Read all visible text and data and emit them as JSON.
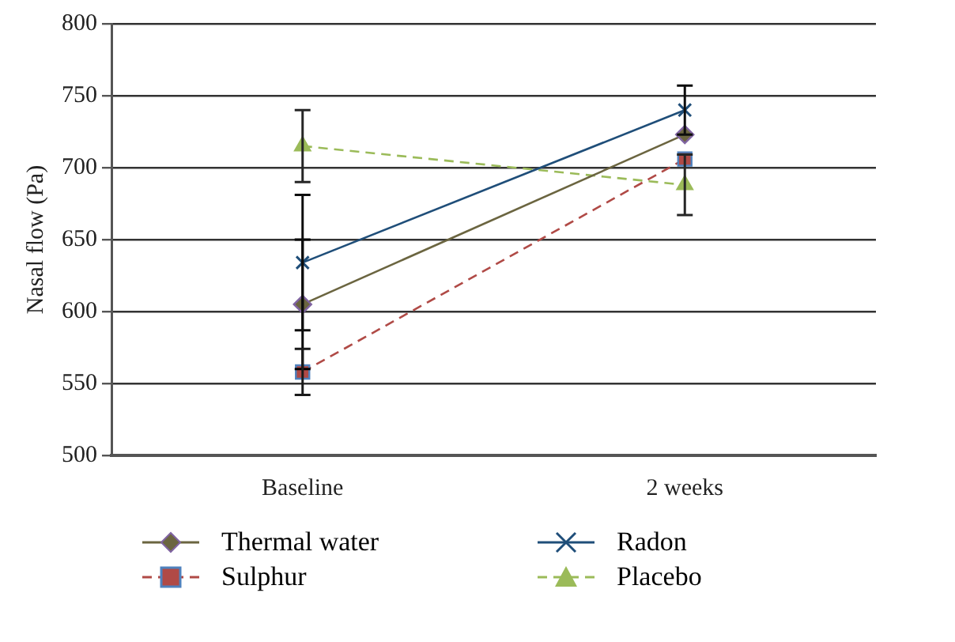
{
  "chart_data": {
    "type": "line",
    "ylabel": "Nasal flow (Pa)",
    "categories": [
      "Baseline",
      "2 weeks"
    ],
    "ylim": [
      500,
      800
    ],
    "yticks": [
      500,
      550,
      600,
      650,
      700,
      750,
      800
    ],
    "grid": "y",
    "legend": "bottom",
    "series": [
      {
        "name": "Thermal water",
        "color": "#6b6540",
        "marker": "diamond",
        "line_style": "solid",
        "values": [
          605,
          723
        ],
        "errors": [
          45,
          null
        ]
      },
      {
        "name": "Sulphur",
        "color": "#b04a46",
        "marker": "square",
        "line_style": "dashed",
        "values": [
          558,
          706
        ],
        "errors": [
          16,
          null
        ]
      },
      {
        "name": "Radon",
        "color": "#1f4e79",
        "marker": "cross",
        "line_style": "solid",
        "values": [
          634,
          740
        ],
        "errors": [
          47,
          17
        ]
      },
      {
        "name": "Placebo",
        "color": "#9bbb59",
        "marker": "triangle",
        "line_style": "dashed",
        "values": [
          715,
          688
        ],
        "errors": [
          25,
          21
        ]
      }
    ]
  }
}
